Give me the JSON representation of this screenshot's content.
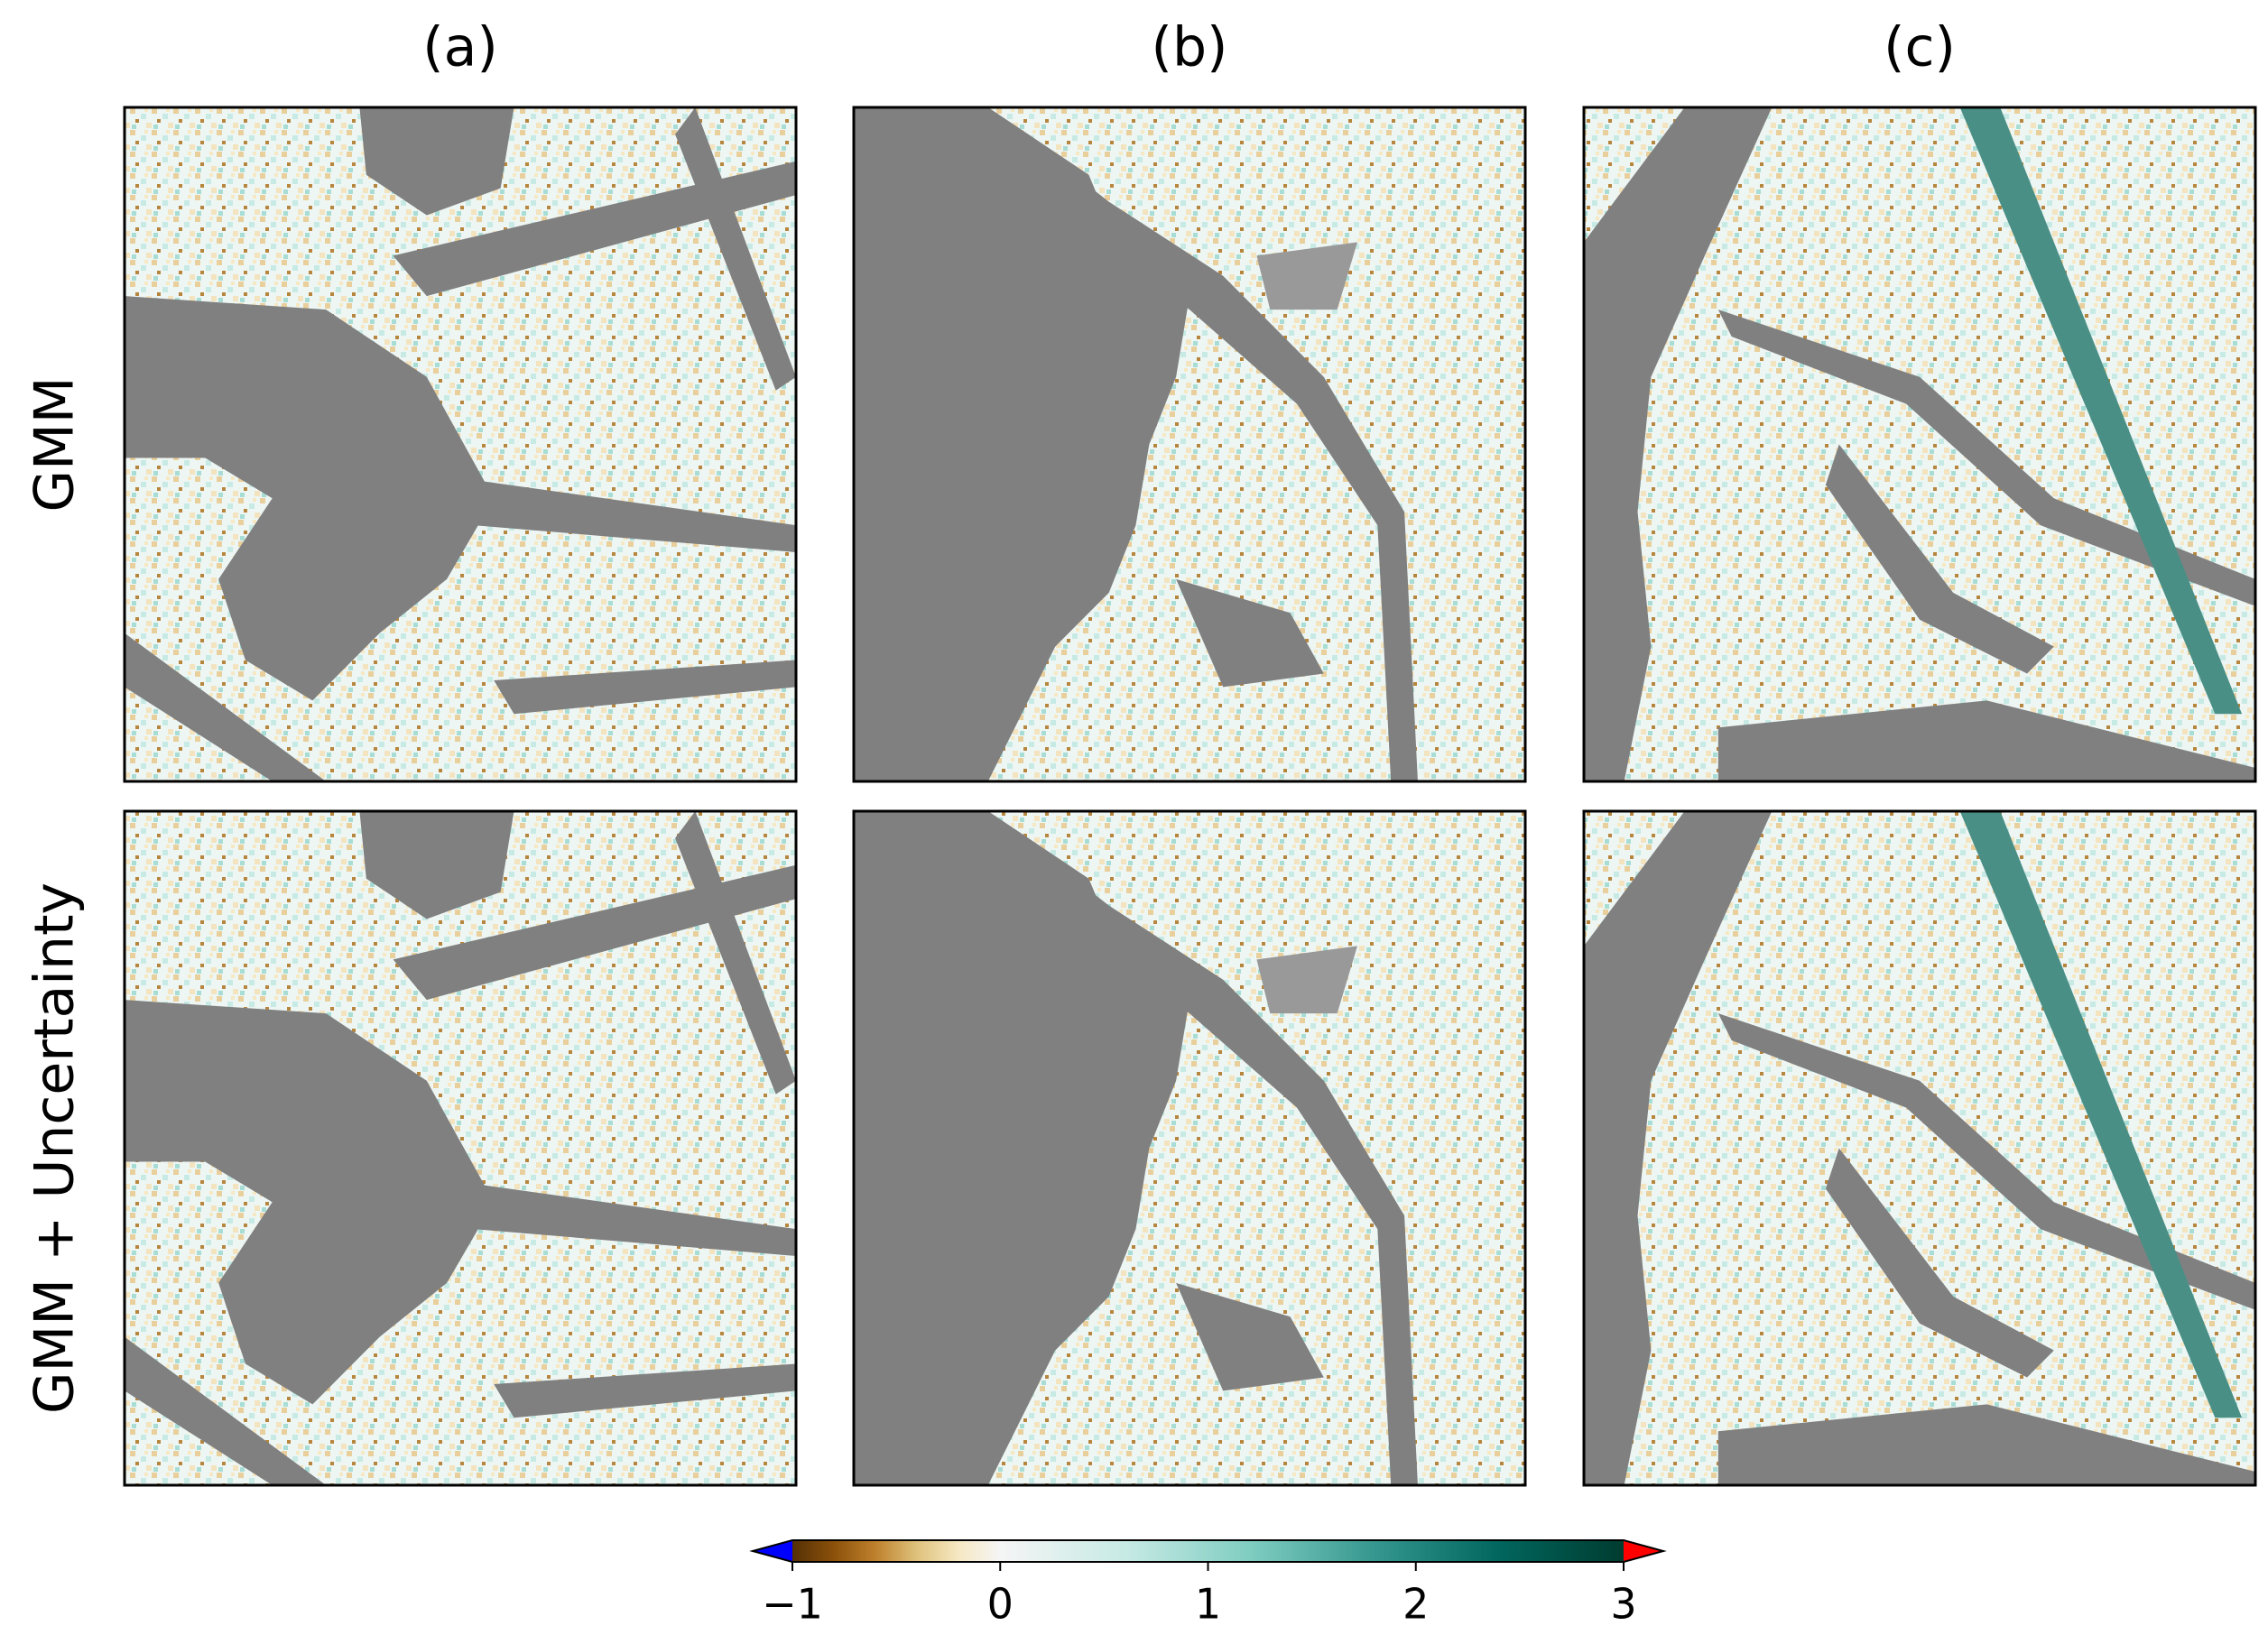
{
  "chart_data": {
    "type": "image-grid",
    "column_titles": [
      "(a)",
      "(b)",
      "(c)"
    ],
    "row_titles": [
      "GMM",
      "GMM + Uncertainty"
    ],
    "colorbar": {
      "colors": [
        "#543005",
        "#8c510a",
        "#bf812d",
        "#dfc27d",
        "#f6e8c3",
        "#f5f5f5",
        "#c7eae5",
        "#80cdc1",
        "#35978f",
        "#01665e",
        "#003c30"
      ],
      "under_color": "#0000ff",
      "over_color": "#ff0000",
      "lim": [
        -1,
        3
      ],
      "ticks": [
        {
          "value": -1,
          "label": "−1"
        },
        0,
        1,
        2,
        3
      ]
    }
  }
}
